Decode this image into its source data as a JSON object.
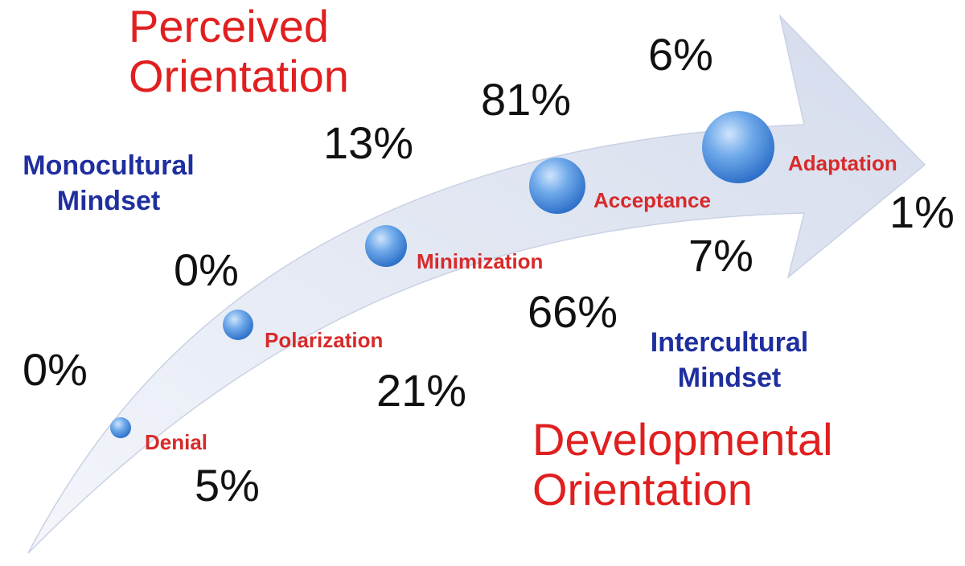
{
  "headings": {
    "perceived": [
      "Perceived",
      "Orientation"
    ],
    "developmental": [
      "Developmental",
      "Orientation"
    ]
  },
  "mindsets": {
    "monocultural": [
      "Monocultural",
      "Mindset"
    ],
    "intercultural": [
      "Intercultural",
      "Mindset"
    ]
  },
  "stages": [
    "Denial",
    "Polarization",
    "Minimization",
    "Acceptance",
    "Adaptation"
  ],
  "perceived_percentages": [
    "0%",
    "0%",
    "13%",
    "81%",
    "6%"
  ],
  "developmental_percentages": [
    "5%",
    "21%",
    "66%",
    "7%",
    "1%"
  ],
  "colors": {
    "heading_red": "#e01f1f",
    "stage_red": "#d72a2a",
    "mindset_blue": "#1f2f9e",
    "arrow_fill": "#dde3f1",
    "sphere_blue": "#3b82d6"
  }
}
